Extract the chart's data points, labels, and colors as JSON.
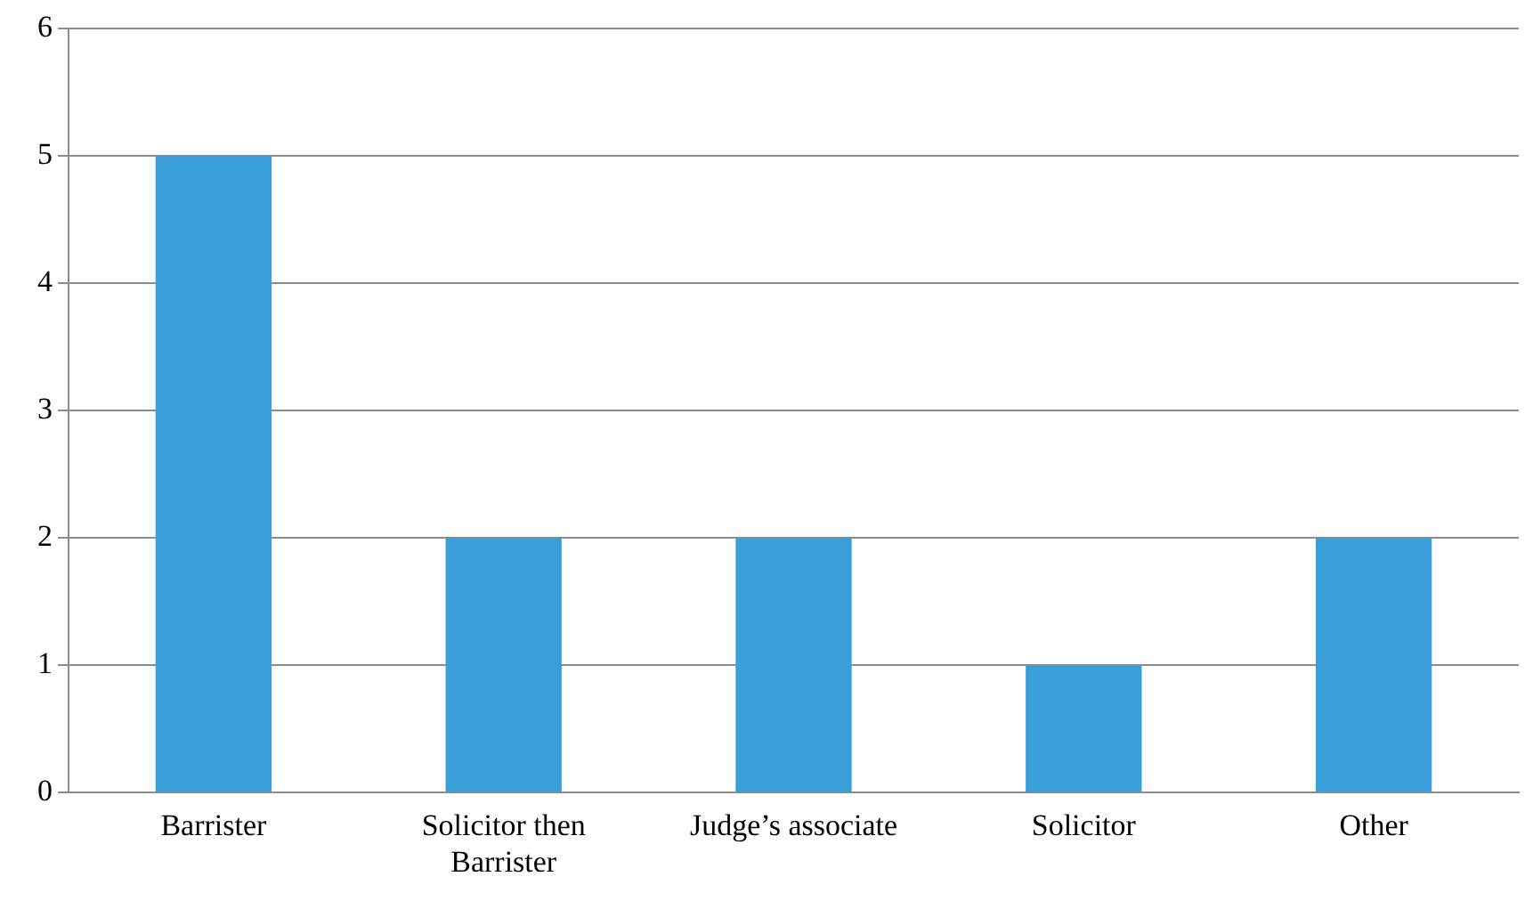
{
  "chart_data": {
    "type": "bar",
    "categories": [
      "Barrister",
      "Solicitor then Barrister",
      "Judge’s associate",
      "Solicitor",
      "Other"
    ],
    "values": [
      5,
      2,
      2,
      1,
      2
    ],
    "color": "#3a9ed9",
    "ylim": [
      0,
      6
    ],
    "yticks": [
      0,
      1,
      2,
      3,
      4,
      5,
      6
    ],
    "grid": "y",
    "legend": false
  }
}
